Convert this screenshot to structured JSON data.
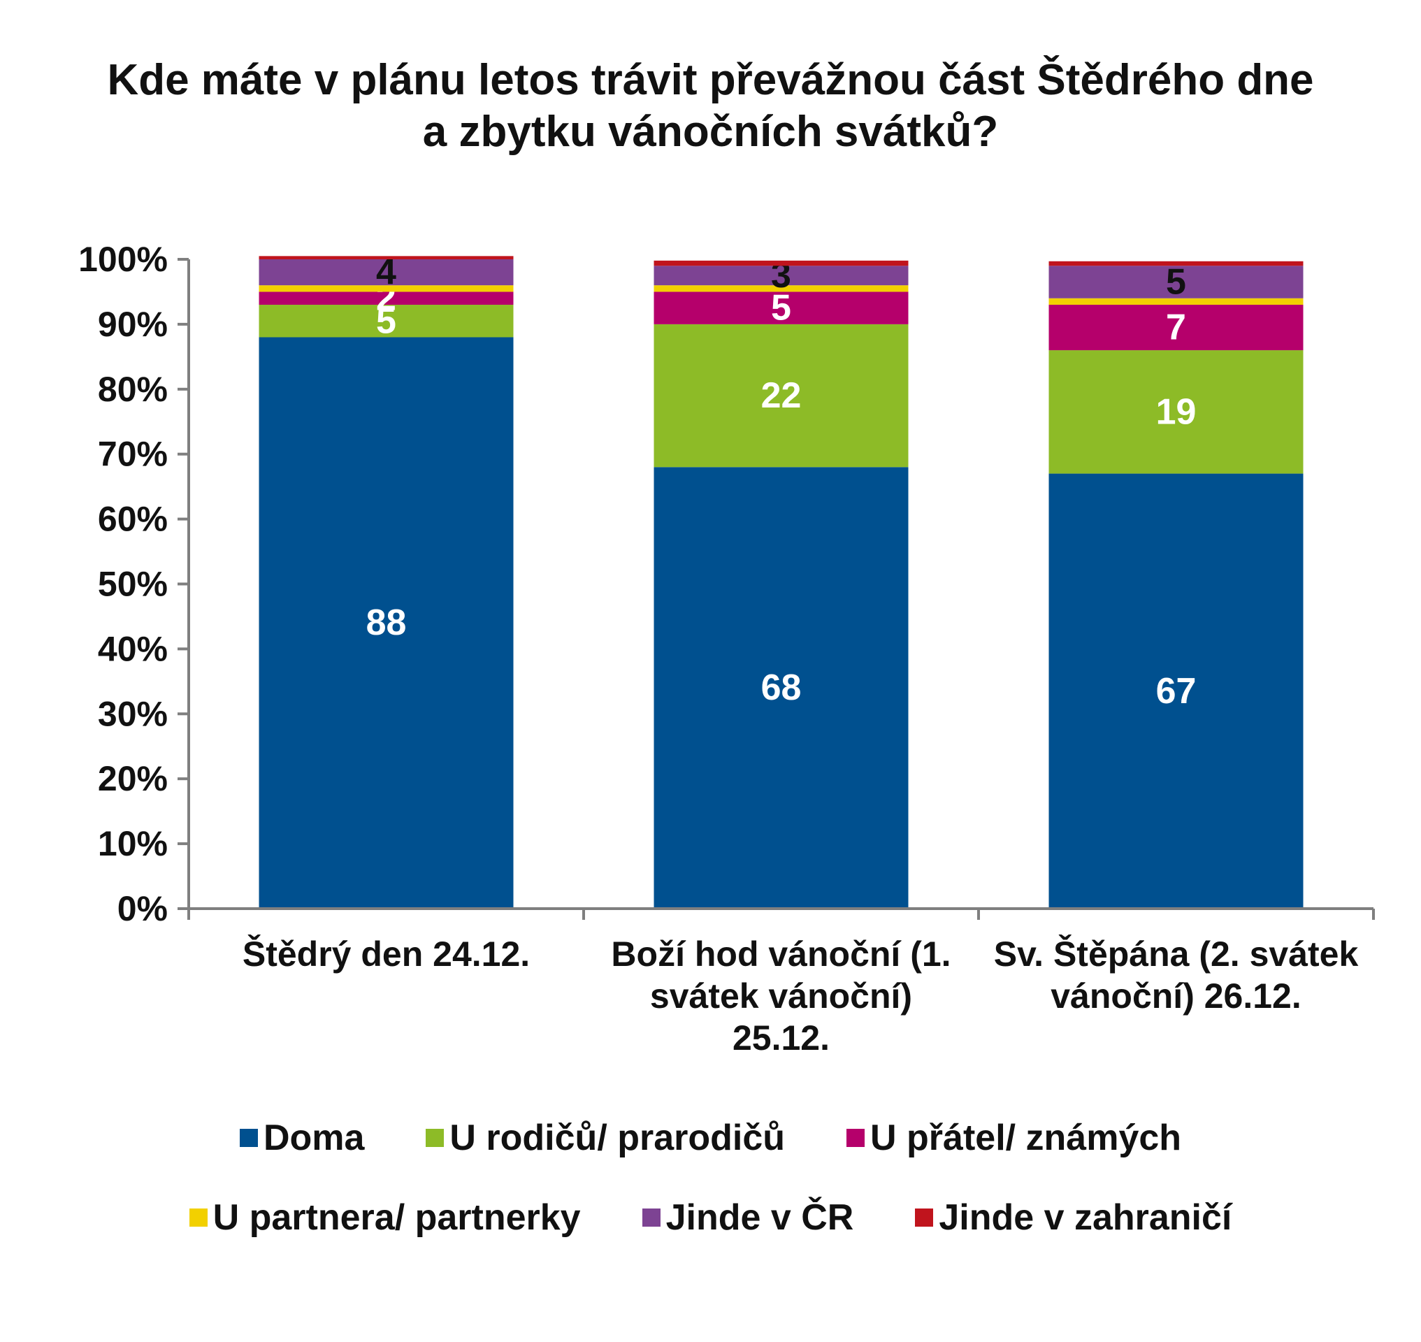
{
  "chart_data": {
    "type": "bar",
    "stacked": true,
    "title_lines": [
      "Kde máte v plánu letos trávit převážnou část Štědrého dne",
      "a zbytku vánočních svátků?"
    ],
    "categories": [
      [
        "Štědrý den 24.12."
      ],
      [
        "Boží hod vánoční (1.",
        "svátek vánoční)",
        "25.12."
      ],
      [
        "Sv. Štěpána (2. svátek",
        "vánoční) 26.12."
      ]
    ],
    "y_ticks": [
      "0%",
      "10%",
      "20%",
      "30%",
      "40%",
      "50%",
      "60%",
      "70%",
      "80%",
      "90%",
      "100%"
    ],
    "ylim": [
      0,
      100
    ],
    "legend_position": "bottom",
    "series": [
      {
        "name": "Doma",
        "color": "#00508f",
        "label_color": "#ffffff",
        "values": [
          88,
          68,
          67
        ],
        "labels": [
          "88",
          "68",
          "67"
        ]
      },
      {
        "name": "U rodičů/ prarodičů",
        "color": "#8dbb27",
        "label_color": "#ffffff",
        "values": [
          5,
          22,
          19
        ],
        "labels": [
          "5",
          "22",
          "19"
        ]
      },
      {
        "name": "U přátel/ známých",
        "color": "#b5006b",
        "label_color": "#ffffff",
        "values": [
          2,
          5,
          7
        ],
        "labels": [
          "2",
          "5",
          "7"
        ]
      },
      {
        "name": "U partnera/ partnerky",
        "color": "#f2d000",
        "label_color": "#111111",
        "values": [
          1,
          1,
          1
        ],
        "labels": [
          "",
          "",
          ""
        ]
      },
      {
        "name": "Jinde v ČR",
        "color": "#7d4393",
        "label_color": "#111111",
        "values": [
          4,
          3,
          5
        ],
        "labels": [
          "4",
          "3",
          "5"
        ]
      },
      {
        "name": "Jinde v zahraničí",
        "color": "#c0141d",
        "label_color": "#111111",
        "values": [
          0.5,
          0.8,
          0.7
        ],
        "labels": [
          "",
          "",
          ""
        ]
      }
    ]
  }
}
